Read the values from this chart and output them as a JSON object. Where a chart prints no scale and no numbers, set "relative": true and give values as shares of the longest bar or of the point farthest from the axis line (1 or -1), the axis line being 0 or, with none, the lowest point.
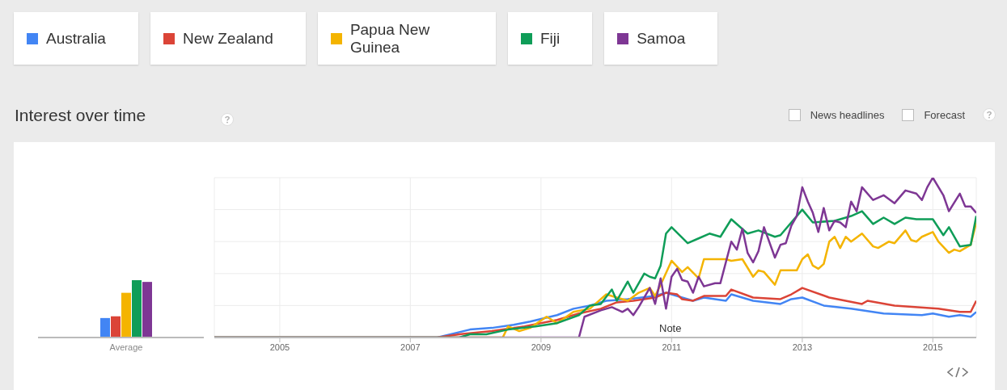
{
  "chart_data": [
    {
      "type": "bar",
      "relative": true,
      "categories": [
        "Average"
      ],
      "annotations": [
        "News headlines",
        "Forecast"
      ],
      "series": [
        {
          "color": "#4285f4",
          "values": [
            0.34
          ]
        },
        {
          "color": "#db4437",
          "values": [
            0.37
          ]
        },
        {
          "color": "#f4b400",
          "values": [
            0.78
          ]
        },
        {
          "color": "#0f9d58",
          "values": [
            1
          ]
        },
        {
          "color": "#7e3794",
          "values": [
            0.97
          ]
        }
      ]
    },
    {
      "type": "line",
      "title": "Interest over time",
      "relative": true,
      "grid": true,
      "legend": "top",
      "xlim": [
        "2004-01",
        "2015-09"
      ],
      "xticks": [
        "2005",
        "2007",
        "2009",
        "2011",
        "2013",
        "2015"
      ],
      "annotations": [
        "Note"
      ],
      "series": [
        {
          "name": "Australia",
          "color": "#4285f4",
          "x": [
            "2004-01",
            "2007-06",
            "2007-12",
            "2008-04",
            "2008-08",
            "2008-11",
            "2009-04",
            "2009-07",
            "2009-10",
            "2010-01",
            "2010-05",
            "2010-10",
            "2010-12",
            "2011-05",
            "2011-07",
            "2011-11",
            "2011-12",
            "2012-04",
            "2012-09",
            "2012-11",
            "2013-01",
            "2013-05",
            "2013-10",
            "2014-04",
            "2014-11",
            "2015-01",
            "2015-04",
            "2015-06",
            "2015-08",
            "2015-09"
          ],
          "values": [
            0,
            0,
            0.05,
            0.06,
            0.08,
            0.1,
            0.14,
            0.18,
            0.2,
            0.23,
            0.24,
            0.26,
            0.28,
            0.23,
            0.25,
            0.23,
            0.27,
            0.23,
            0.21,
            0.24,
            0.25,
            0.2,
            0.18,
            0.15,
            0.14,
            0.15,
            0.13,
            0.14,
            0.13,
            0.16
          ]
        },
        {
          "name": "New Zealand",
          "color": "#db4437",
          "x": [
            "2004-01",
            "2007-06",
            "2007-10",
            "2008-04",
            "2008-10",
            "2009-04",
            "2009-08",
            "2009-12",
            "2010-03",
            "2010-06",
            "2010-10",
            "2010-12",
            "2011-02",
            "2011-03",
            "2011-05",
            "2011-07",
            "2011-11",
            "2011-12",
            "2012-04",
            "2012-09",
            "2012-11",
            "2013-01",
            "2013-06",
            "2013-12",
            "2014-01",
            "2014-06",
            "2015-02",
            "2015-06",
            "2015-08",
            "2015-09"
          ],
          "values": [
            0,
            0,
            0.02,
            0.04,
            0.07,
            0.11,
            0.15,
            0.18,
            0.22,
            0.23,
            0.25,
            0.28,
            0.27,
            0.24,
            0.23,
            0.26,
            0.26,
            0.3,
            0.25,
            0.24,
            0.27,
            0.31,
            0.25,
            0.21,
            0.23,
            0.2,
            0.18,
            0.16,
            0.16,
            0.23
          ]
        },
        {
          "name": "Papua New Guinea",
          "color": "#f4b400",
          "x": [
            "2004-01",
            "2008-06",
            "2008-07",
            "2008-09",
            "2008-11",
            "2009-02",
            "2009-04",
            "2009-07",
            "2009-10",
            "2010-01",
            "2010-03",
            "2010-05",
            "2010-07",
            "2010-09",
            "2010-10",
            "2010-11",
            "2011-01",
            "2011-03",
            "2011-04",
            "2011-06",
            "2011-07",
            "2011-09",
            "2011-11",
            "2011-12",
            "2012-02",
            "2012-04",
            "2012-05",
            "2012-06",
            "2012-08",
            "2012-09",
            "2012-12",
            "2013-01",
            "2013-02",
            "2013-03",
            "2013-04",
            "2013-05",
            "2013-06",
            "2013-07",
            "2013-08",
            "2013-09",
            "2013-10",
            "2013-12",
            "2014-02",
            "2014-03",
            "2014-05",
            "2014-06",
            "2014-08",
            "2014-09",
            "2014-10",
            "2014-11",
            "2015-01",
            "2015-02",
            "2015-04",
            "2015-05",
            "2015-06",
            "2015-08",
            "2015-09"
          ],
          "values": [
            0,
            0,
            0.07,
            0.04,
            0.06,
            0.13,
            0.09,
            0.16,
            0.18,
            0.27,
            0.25,
            0.23,
            0.28,
            0.31,
            0.26,
            0.33,
            0.48,
            0.41,
            0.44,
            0.37,
            0.49,
            0.49,
            0.49,
            0.48,
            0.49,
            0.38,
            0.42,
            0.41,
            0.33,
            0.42,
            0.42,
            0.49,
            0.52,
            0.45,
            0.43,
            0.46,
            0.6,
            0.63,
            0.56,
            0.63,
            0.6,
            0.65,
            0.57,
            0.56,
            0.6,
            0.59,
            0.67,
            0.61,
            0.6,
            0.63,
            0.66,
            0.6,
            0.53,
            0.55,
            0.54,
            0.58,
            0.72
          ]
        },
        {
          "name": "Fiji",
          "color": "#0f9d58",
          "x": [
            "2004-01",
            "2007-10",
            "2007-12",
            "2008-03",
            "2008-07",
            "2008-12",
            "2009-04",
            "2009-08",
            "2009-10",
            "2009-12",
            "2010-02",
            "2010-03",
            "2010-05",
            "2010-06",
            "2010-08",
            "2010-09",
            "2010-10",
            "2010-11",
            "2010-12",
            "2011-01",
            "2011-04",
            "2011-06",
            "2011-08",
            "2011-10",
            "2011-12",
            "2012-03",
            "2012-05",
            "2012-08",
            "2012-09",
            "2013-01",
            "2013-03",
            "2013-07",
            "2013-09",
            "2013-10",
            "2013-12",
            "2014-02",
            "2014-04",
            "2014-06",
            "2014-08",
            "2014-10",
            "2015-01",
            "2015-03",
            "2015-04",
            "2015-06",
            "2015-08",
            "2015-09"
          ],
          "values": [
            0,
            0,
            0.02,
            0.02,
            0.05,
            0.07,
            0.09,
            0.14,
            0.2,
            0.21,
            0.3,
            0.23,
            0.35,
            0.28,
            0.4,
            0.38,
            0.37,
            0.45,
            0.65,
            0.69,
            0.59,
            0.62,
            0.65,
            0.63,
            0.74,
            0.65,
            0.67,
            0.63,
            0.64,
            0.8,
            0.72,
            0.73,
            0.75,
            0.76,
            0.79,
            0.71,
            0.75,
            0.71,
            0.75,
            0.74,
            0.74,
            0.64,
            0.69,
            0.57,
            0.58,
            0.76
          ]
        },
        {
          "name": "Samoa",
          "color": "#7e3794",
          "x": [
            "2004-01",
            "2009-08",
            "2009-09",
            "2009-12",
            "2010-02",
            "2010-04",
            "2010-05",
            "2010-06",
            "2010-07",
            "2010-09",
            "2010-10",
            "2010-11",
            "2010-12",
            "2011-01",
            "2011-02",
            "2011-03",
            "2011-04",
            "2011-05",
            "2011-06",
            "2011-07",
            "2011-09",
            "2011-10",
            "2011-12",
            "2012-01",
            "2012-02",
            "2012-03",
            "2012-04",
            "2012-05",
            "2012-06",
            "2012-08",
            "2012-09",
            "2012-10",
            "2012-11",
            "2012-12",
            "2013-01",
            "2013-02",
            "2013-03",
            "2013-04",
            "2013-05",
            "2013-06",
            "2013-07",
            "2013-08",
            "2013-09",
            "2013-10",
            "2013-11",
            "2013-12",
            "2014-02",
            "2014-04",
            "2014-06",
            "2014-08",
            "2014-10",
            "2014-11",
            "2014-12",
            "2015-01",
            "2015-03",
            "2015-04",
            "2015-06",
            "2015-07",
            "2015-08",
            "2015-09"
          ],
          "values": [
            0,
            0,
            0.13,
            0.17,
            0.19,
            0.16,
            0.18,
            0.14,
            0.19,
            0.31,
            0.21,
            0.37,
            0.18,
            0.38,
            0.43,
            0.36,
            0.35,
            0.28,
            0.38,
            0.32,
            0.34,
            0.34,
            0.6,
            0.55,
            0.68,
            0.53,
            0.47,
            0.54,
            0.69,
            0.5,
            0.58,
            0.59,
            0.7,
            0.76,
            0.94,
            0.85,
            0.78,
            0.66,
            0.81,
            0.67,
            0.73,
            0.72,
            0.69,
            0.85,
            0.79,
            0.94,
            0.86,
            0.89,
            0.84,
            0.92,
            0.9,
            0.86,
            0.94,
            1,
            0.89,
            0.79,
            0.9,
            0.82,
            0.82,
            0.78
          ]
        }
      ]
    }
  ]
}
